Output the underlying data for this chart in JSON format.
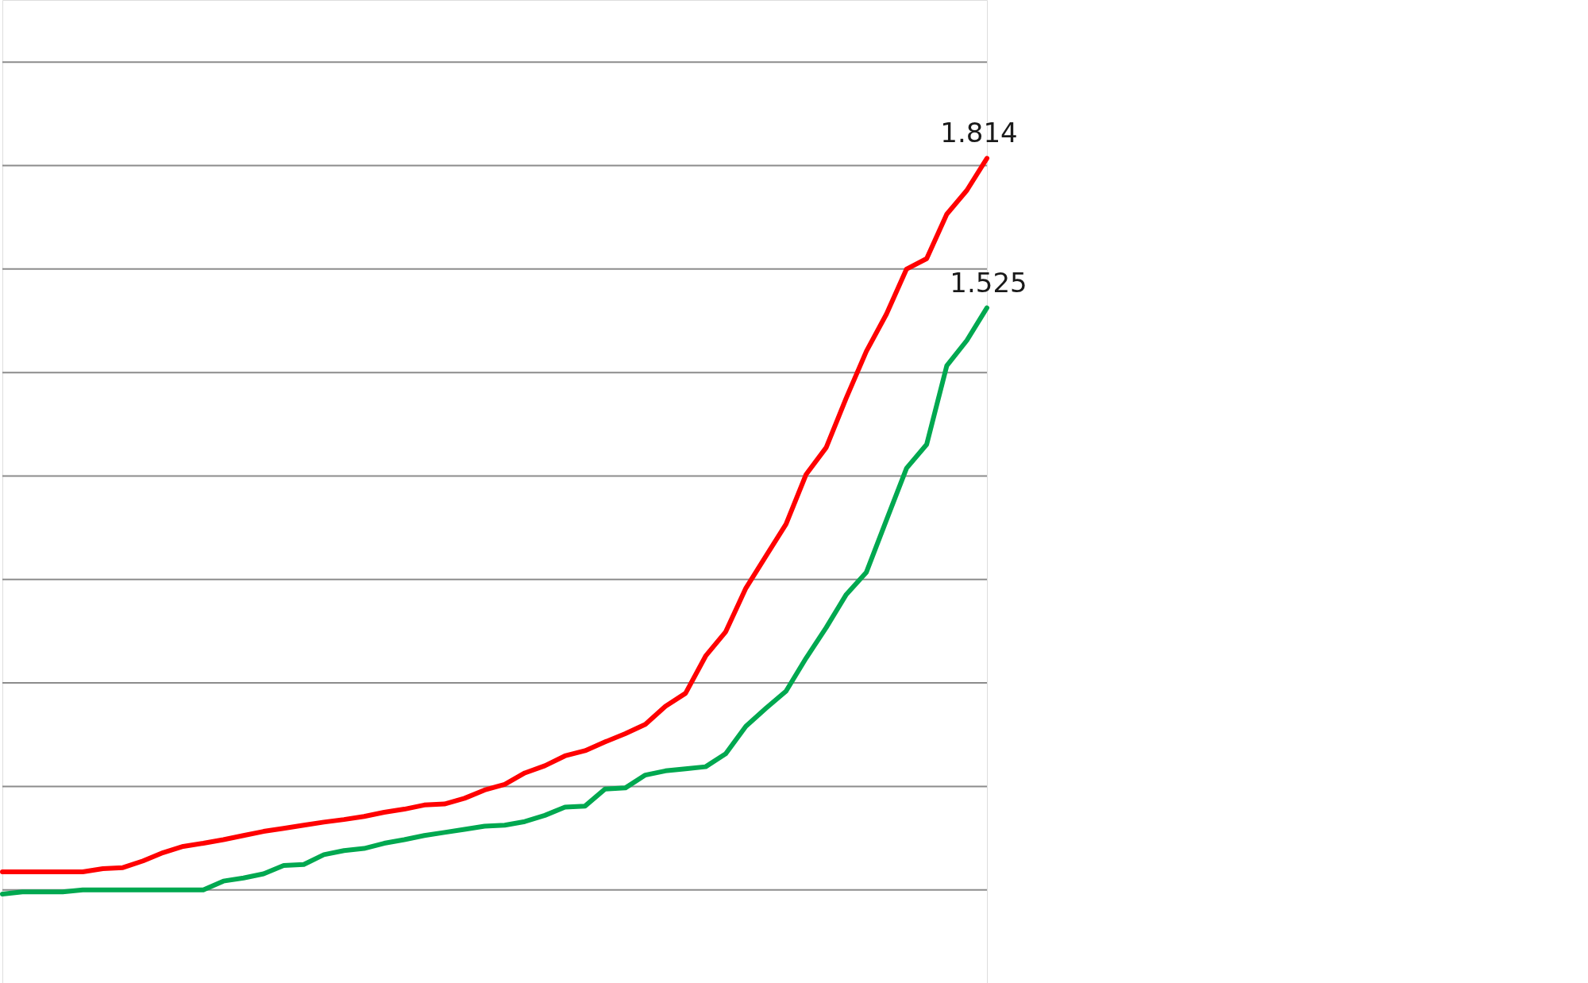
{
  "chart_data": {
    "type": "line",
    "categories": [
      null,
      null,
      null,
      null,
      null,
      null,
      null,
      null,
      null,
      null,
      null,
      null,
      null,
      null,
      null,
      null,
      null,
      null,
      null,
      null,
      null,
      null,
      null,
      null,
      null,
      null,
      null,
      null,
      null,
      null,
      null,
      null,
      null,
      null,
      null,
      null,
      null,
      null,
      null,
      null,
      null,
      null,
      null,
      null,
      null,
      null,
      null,
      null,
      null,
      null
    ],
    "series": [
      {
        "color": "#ff0000",
        "values": [
          0.435,
          0.435,
          0.435,
          0.435,
          0.435,
          0.441,
          0.443,
          0.456,
          0.472,
          0.484,
          0.49,
          0.497,
          0.505,
          0.513,
          0.519,
          0.525,
          0.531,
          0.536,
          0.542,
          0.55,
          0.556,
          0.564,
          0.566,
          0.577,
          0.593,
          0.604,
          0.626,
          0.64,
          0.659,
          0.669,
          0.686,
          0.702,
          0.72,
          0.755,
          0.78,
          0.852,
          0.899,
          0.983,
          1.045,
          1.107,
          1.203,
          1.255,
          1.351,
          1.441,
          1.513,
          1.6,
          1.62,
          1.706,
          1.752,
          1.814
        ],
        "value_labels": [
          null,
          null,
          null,
          null,
          null,
          null,
          null,
          null,
          null,
          null,
          null,
          null,
          null,
          null,
          null,
          null,
          null,
          null,
          null,
          null,
          null,
          null,
          null,
          null,
          null,
          null,
          null,
          null,
          null,
          null,
          null,
          null,
          null,
          null,
          null,
          null,
          null,
          null,
          null,
          null,
          null,
          null,
          null,
          null,
          null,
          null,
          null,
          null,
          null,
          "1.814"
        ]
      },
      {
        "color": "#00a850",
        "values": [
          0.392,
          0.396,
          0.396,
          0.396,
          0.4,
          0.4,
          0.4,
          0.4,
          0.4,
          0.4,
          0.4,
          0.417,
          0.423,
          0.431,
          0.447,
          0.449,
          0.468,
          0.476,
          0.48,
          0.49,
          0.497,
          0.505,
          0.511,
          0.517,
          0.523,
          0.525,
          0.532,
          0.544,
          0.56,
          0.562,
          0.595,
          0.597,
          0.622,
          0.63,
          0.634,
          0.638,
          0.663,
          0.716,
          0.751,
          0.784,
          0.848,
          0.907,
          0.971,
          1.014,
          1.115,
          1.215,
          1.261,
          1.413,
          1.462,
          1.525
        ],
        "value_labels": [
          null,
          null,
          null,
          null,
          null,
          null,
          null,
          null,
          null,
          null,
          null,
          null,
          null,
          null,
          null,
          null,
          null,
          null,
          null,
          null,
          null,
          null,
          null,
          null,
          null,
          null,
          null,
          null,
          null,
          null,
          null,
          null,
          null,
          null,
          null,
          null,
          null,
          null,
          null,
          null,
          null,
          null,
          null,
          null,
          null,
          null,
          null,
          null,
          null,
          "1.525"
        ]
      }
    ],
    "ylim": [
      0.22,
      2.12
    ],
    "yticks": [
      {
        "value": 0.4,
        "label": null
      },
      {
        "value": 0.6,
        "label": null
      },
      {
        "value": 0.8,
        "label": null
      },
      {
        "value": 1.0,
        "label": null
      },
      {
        "value": 1.2,
        "label": null
      },
      {
        "value": 1.4,
        "label": null
      },
      {
        "value": 1.6,
        "label": null
      },
      {
        "value": 1.8,
        "label": null
      },
      {
        "value": 2.0,
        "label": null
      }
    ],
    "grid": "y",
    "tick_labels": false,
    "marker": "none"
  }
}
